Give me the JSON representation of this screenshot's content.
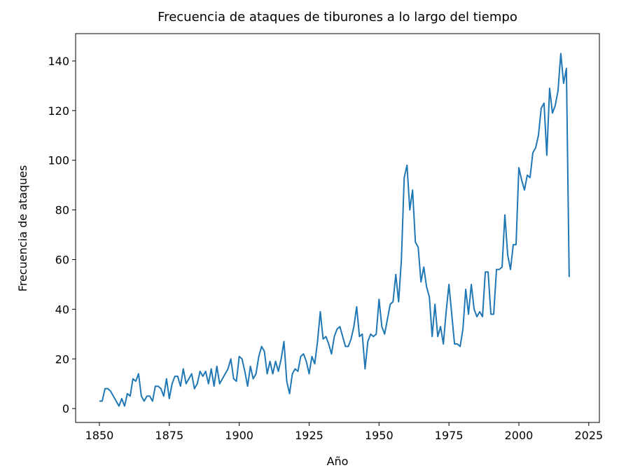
{
  "chart_data": {
    "type": "line",
    "title": "Frecuencia de ataques de tiburones a lo largo del tiempo",
    "xlabel": "Año",
    "ylabel": "Frecuencia de ataques",
    "x": [
      1850,
      1851,
      1852,
      1853,
      1854,
      1855,
      1856,
      1857,
      1858,
      1859,
      1860,
      1861,
      1862,
      1863,
      1864,
      1865,
      1866,
      1867,
      1868,
      1869,
      1870,
      1871,
      1872,
      1873,
      1874,
      1875,
      1876,
      1877,
      1878,
      1879,
      1880,
      1881,
      1882,
      1883,
      1884,
      1885,
      1886,
      1887,
      1888,
      1889,
      1890,
      1891,
      1892,
      1893,
      1894,
      1895,
      1896,
      1897,
      1898,
      1899,
      1900,
      1901,
      1902,
      1903,
      1904,
      1905,
      1906,
      1907,
      1908,
      1909,
      1910,
      1911,
      1912,
      1913,
      1914,
      1915,
      1916,
      1917,
      1918,
      1919,
      1920,
      1921,
      1922,
      1923,
      1924,
      1925,
      1926,
      1927,
      1928,
      1929,
      1930,
      1931,
      1932,
      1933,
      1934,
      1935,
      1936,
      1937,
      1938,
      1939,
      1940,
      1941,
      1942,
      1943,
      1944,
      1945,
      1946,
      1947,
      1948,
      1949,
      1950,
      1951,
      1952,
      1953,
      1954,
      1955,
      1956,
      1957,
      1958,
      1959,
      1960,
      1961,
      1962,
      1963,
      1964,
      1965,
      1966,
      1967,
      1968,
      1969,
      1970,
      1971,
      1972,
      1973,
      1974,
      1975,
      1976,
      1977,
      1978,
      1979,
      1980,
      1981,
      1982,
      1983,
      1984,
      1985,
      1986,
      1987,
      1988,
      1989,
      1990,
      1991,
      1992,
      1993,
      1994,
      1995,
      1996,
      1997,
      1998,
      1999,
      2000,
      2001,
      2002,
      2003,
      2004,
      2005,
      2006,
      2007,
      2008,
      2009,
      2010,
      2011,
      2012,
      2013,
      2014,
      2015,
      2016,
      2017,
      2018
    ],
    "series": [
      {
        "name": "Frecuencia de ataques",
        "color": "#1f77b4",
        "values": [
          3,
          3,
          8,
          8,
          7,
          5,
          3,
          1,
          4,
          1,
          6,
          5,
          12,
          11,
          14,
          5,
          3,
          5,
          5,
          3,
          9,
          9,
          8,
          5,
          12,
          4,
          10,
          13,
          13,
          9,
          16,
          10,
          12,
          14,
          8,
          10,
          15,
          13,
          15,
          10,
          16,
          9,
          17,
          10,
          12,
          14,
          16,
          20,
          12,
          11,
          21,
          20,
          15,
          9,
          17,
          12,
          14,
          21,
          25,
          23,
          14,
          19,
          14,
          19,
          15,
          20,
          27,
          11,
          6,
          14,
          16,
          15,
          21,
          22,
          19,
          14,
          21,
          18,
          27,
          39,
          28,
          29,
          26,
          22,
          29,
          32,
          33,
          29,
          25,
          25,
          28,
          33,
          41,
          29,
          30,
          16,
          27,
          30,
          29,
          30,
          44,
          33,
          30,
          36,
          42,
          43,
          54,
          43,
          60,
          93,
          98,
          80,
          88,
          67,
          65,
          51,
          57,
          49,
          45,
          29,
          42,
          29,
          33,
          26,
          39,
          50,
          38,
          26,
          26,
          25,
          32,
          48,
          38,
          50,
          40,
          37,
          39,
          37,
          55,
          55,
          38,
          38,
          56,
          56,
          57,
          78,
          62,
          56,
          66,
          66,
          97,
          92,
          88,
          94,
          93,
          103,
          105,
          110,
          121,
          123,
          102,
          129,
          119,
          122,
          128,
          143,
          131,
          137,
          53
        ]
      }
    ],
    "xlim": [
      1841.5,
      2028.8
    ],
    "ylim": [
      -5.6,
      151
    ],
    "xticks": [
      1850,
      1875,
      1900,
      1925,
      1950,
      1975,
      2000,
      2025
    ],
    "yticks": [
      0,
      20,
      40,
      60,
      80,
      100,
      120,
      140
    ]
  }
}
